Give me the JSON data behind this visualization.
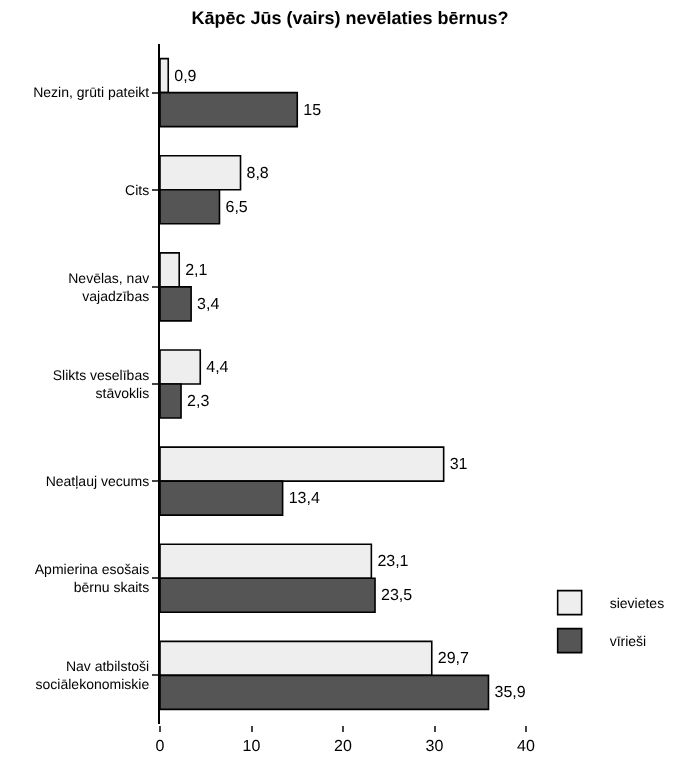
{
  "chart_data": {
    "type": "bar",
    "orientation": "horizontal",
    "title": "Kāpēc Jūs (vairs) nevēlaties bērnus?",
    "categories": [
      "Nezin, grūti pateikt",
      "Cits",
      "Nevēlas, nav vajadzības",
      "Slikts veselības stāvoklis",
      "Neatļauj vecums",
      "Apmierina esošais bērnu skaits",
      "Nav atbilstoši sociālekonomiskie"
    ],
    "series": [
      {
        "name": "sievietes",
        "color": "#eeeeee",
        "values": [
          0.9,
          8.8,
          2.1,
          4.4,
          31,
          23.1,
          29.7
        ],
        "value_labels": [
          "0,9",
          "8,8",
          "2,1",
          "4,4",
          "31",
          "23,1",
          "29,7"
        ]
      },
      {
        "name": "vīrieši",
        "color": "#555555",
        "values": [
          15,
          6.5,
          3.4,
          2.3,
          13.4,
          23.5,
          35.9
        ],
        "value_labels": [
          "15",
          "6,5",
          "3,4",
          "2,3",
          "13,4",
          "23,5",
          "35,9"
        ]
      }
    ],
    "xlim": [
      0,
      40
    ],
    "xticks": [
      0,
      10,
      20,
      30,
      40
    ],
    "grid": false,
    "legend": "bottom right"
  }
}
